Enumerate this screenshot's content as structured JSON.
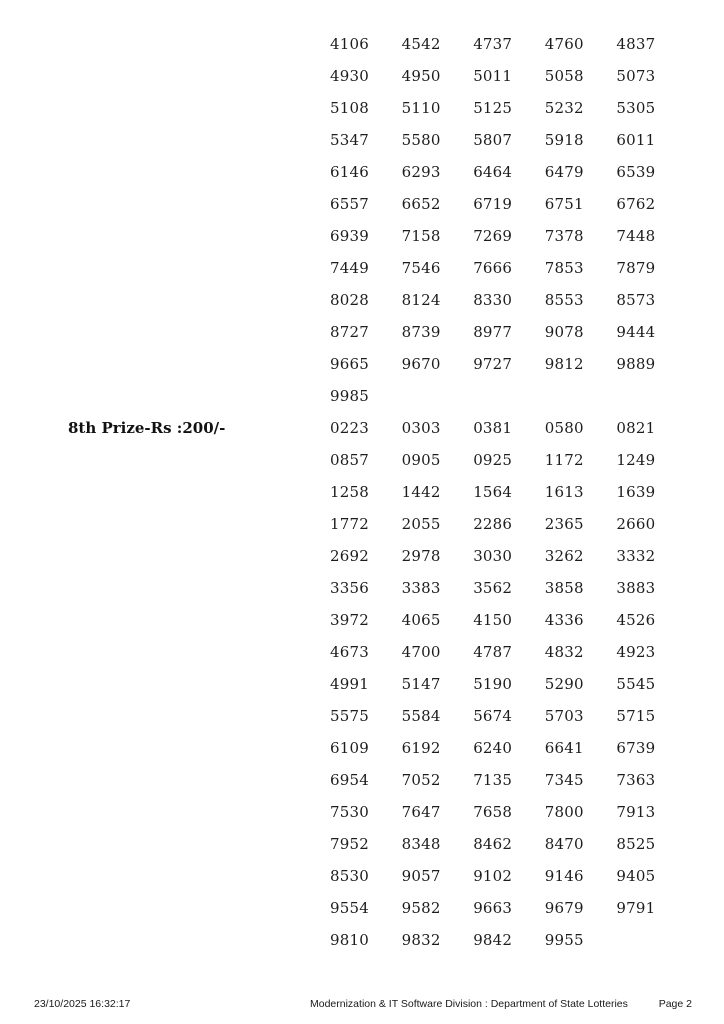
{
  "document": {
    "colors": {
      "background": "#ffffff",
      "text": "#1d1d1d"
    },
    "sections": [
      {
        "id": "prize-list-continuation",
        "label": "",
        "rows": [
          [
            "4106",
            "4542",
            "4737",
            "4760",
            "4837"
          ],
          [
            "4930",
            "4950",
            "5011",
            "5058",
            "5073"
          ],
          [
            "5108",
            "5110",
            "5125",
            "5232",
            "5305"
          ],
          [
            "5347",
            "5580",
            "5807",
            "5918",
            "6011"
          ],
          [
            "6146",
            "6293",
            "6464",
            "6479",
            "6539"
          ],
          [
            "6557",
            "6652",
            "6719",
            "6751",
            "6762"
          ],
          [
            "6939",
            "7158",
            "7269",
            "7378",
            "7448"
          ],
          [
            "7449",
            "7546",
            "7666",
            "7853",
            "7879"
          ],
          [
            "8028",
            "8124",
            "8330",
            "8553",
            "8573"
          ],
          [
            "8727",
            "8739",
            "8977",
            "9078",
            "9444"
          ],
          [
            "9665",
            "9670",
            "9727",
            "9812",
            "9889"
          ],
          [
            "9985"
          ]
        ]
      },
      {
        "id": "eighth-prize",
        "label": "8th Prize-Rs :200/-",
        "rows": [
          [
            "0223",
            "0303",
            "0381",
            "0580",
            "0821"
          ],
          [
            "0857",
            "0905",
            "0925",
            "1172",
            "1249"
          ],
          [
            "1258",
            "1442",
            "1564",
            "1613",
            "1639"
          ],
          [
            "1772",
            "2055",
            "2286",
            "2365",
            "2660"
          ],
          [
            "2692",
            "2978",
            "3030",
            "3262",
            "3332"
          ],
          [
            "3356",
            "3383",
            "3562",
            "3858",
            "3883"
          ],
          [
            "3972",
            "4065",
            "4150",
            "4336",
            "4526"
          ],
          [
            "4673",
            "4700",
            "4787",
            "4832",
            "4923"
          ],
          [
            "4991",
            "5147",
            "5190",
            "5290",
            "5545"
          ],
          [
            "5575",
            "5584",
            "5674",
            "5703",
            "5715"
          ],
          [
            "6109",
            "6192",
            "6240",
            "6641",
            "6739"
          ],
          [
            "6954",
            "7052",
            "7135",
            "7345",
            "7363"
          ],
          [
            "7530",
            "7647",
            "7658",
            "7800",
            "7913"
          ],
          [
            "7952",
            "8348",
            "8462",
            "8470",
            "8525"
          ],
          [
            "8530",
            "9057",
            "9102",
            "9146",
            "9405"
          ],
          [
            "9554",
            "9582",
            "9663",
            "9679",
            "9791"
          ],
          [
            "9810",
            "9832",
            "9842",
            "9955"
          ]
        ]
      }
    ],
    "footer": {
      "datetime": "23/10/2025 16:32:17",
      "division": "Modernization & IT Software Division : Department of State Lotteries",
      "page_label": "Page 2"
    }
  }
}
